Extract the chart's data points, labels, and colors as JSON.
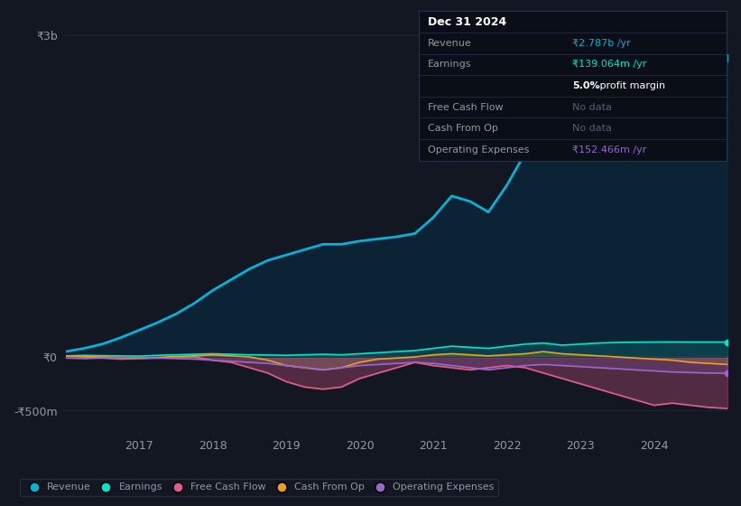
{
  "background_color": "#131722",
  "plot_bg_color": "#131722",
  "grid_color": "#1e2535",
  "text_color": "#9198a4",
  "title_color": "#ffffff",
  "x_years": [
    2016,
    2016.25,
    2016.5,
    2016.75,
    2017,
    2017.25,
    2017.5,
    2017.75,
    2018,
    2018.25,
    2018.5,
    2018.75,
    2019,
    2019.25,
    2019.5,
    2019.75,
    2020,
    2020.25,
    2020.5,
    2020.75,
    2021,
    2021.25,
    2021.5,
    2021.75,
    2022,
    2022.25,
    2022.5,
    2022.75,
    2023,
    2023.25,
    2023.5,
    2023.75,
    2024,
    2024.25,
    2024.5,
    2024.75,
    2025
  ],
  "revenue": [
    50,
    80,
    120,
    180,
    250,
    320,
    400,
    500,
    620,
    720,
    820,
    900,
    950,
    1000,
    1050,
    1050,
    1080,
    1100,
    1120,
    1150,
    1300,
    1500,
    1450,
    1350,
    1600,
    1900,
    2050,
    1950,
    2100,
    2150,
    2200,
    2250,
    2350,
    2500,
    2600,
    2700,
    2787
  ],
  "earnings": [
    10,
    15,
    12,
    10,
    8,
    15,
    20,
    25,
    30,
    25,
    20,
    18,
    15,
    20,
    25,
    20,
    30,
    40,
    50,
    60,
    80,
    100,
    90,
    80,
    100,
    120,
    130,
    110,
    120,
    130,
    135,
    138,
    139,
    140,
    139,
    139,
    139
  ],
  "free_cash_flow": [
    5,
    0,
    -10,
    -20,
    -15,
    -10,
    -5,
    0,
    -30,
    -50,
    -100,
    -150,
    -230,
    -280,
    -300,
    -280,
    -200,
    -150,
    -100,
    -50,
    -80,
    -100,
    -120,
    -100,
    -80,
    -100,
    -150,
    -200,
    -250,
    -300,
    -350,
    -400,
    -450,
    -430,
    -450,
    -470,
    -480
  ],
  "cash_from_op": [
    10,
    5,
    0,
    -5,
    -10,
    -5,
    5,
    10,
    20,
    10,
    0,
    -30,
    -80,
    -100,
    -120,
    -100,
    -50,
    -20,
    -10,
    0,
    20,
    30,
    20,
    10,
    20,
    30,
    50,
    30,
    20,
    10,
    0,
    -10,
    -20,
    -30,
    -50,
    -60,
    -70
  ],
  "operating_expenses": [
    -10,
    -15,
    -10,
    -5,
    -5,
    -10,
    -15,
    -20,
    -30,
    -40,
    -50,
    -60,
    -80,
    -100,
    -120,
    -100,
    -80,
    -70,
    -60,
    -50,
    -60,
    -80,
    -100,
    -120,
    -100,
    -80,
    -70,
    -80,
    -90,
    -100,
    -110,
    -120,
    -130,
    -140,
    -145,
    -150,
    -152
  ],
  "revenue_color": "#00b4d8",
  "earnings_color": "#00e5c8",
  "free_cash_flow_color": "#e05c8a",
  "cash_from_op_color": "#e8a020",
  "operating_expenses_color": "#9966cc",
  "fill_revenue_color": "#003a5c",
  "ylim_min": -700,
  "ylim_max": 3200,
  "y_ticks": [
    3000,
    0,
    -500
  ],
  "y_tick_labels": [
    "₹3b",
    "₹0",
    "-₹500m"
  ],
  "x_tick_years": [
    2017,
    2018,
    2019,
    2020,
    2021,
    2022,
    2023,
    2024
  ],
  "info_box": {
    "date": "Dec 31 2024",
    "bg_color": "#0a0e17",
    "border_color": "#2a3045",
    "revenue_label": "Revenue",
    "revenue_value": "₹2.787b /yr",
    "revenue_value_color": "#00b4d8",
    "earnings_label": "Earnings",
    "earnings_value": "₹139.064m /yr",
    "earnings_value_color": "#00e5c8",
    "profit_margin": "5.0%",
    "profit_margin_label": " profit margin",
    "fcf_label": "Free Cash Flow",
    "fcf_value": "No data",
    "cfo_label": "Cash From Op",
    "cfo_value": "No data",
    "opex_label": "Operating Expenses",
    "opex_value": "₹152.466m /yr",
    "opex_value_color": "#9966cc"
  },
  "legend_items": [
    {
      "label": "Revenue",
      "color": "#00b4d8"
    },
    {
      "label": "Earnings",
      "color": "#00e5c8"
    },
    {
      "label": "Free Cash Flow",
      "color": "#e05c8a"
    },
    {
      "label": "Cash From Op",
      "color": "#e8a020"
    },
    {
      "label": "Operating Expenses",
      "color": "#9966cc"
    }
  ]
}
